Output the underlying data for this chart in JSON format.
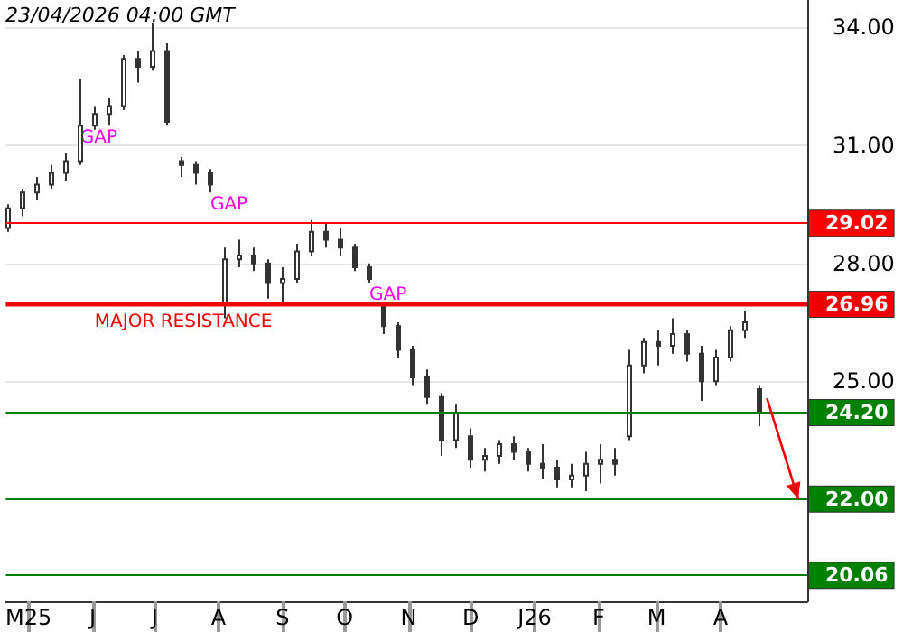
{
  "chart_data": {
    "type": "candlestick",
    "x": [
      "2025-04-21",
      "2025-04-28",
      "2025-05-05",
      "2025-05-12",
      "2025-05-19",
      "2025-05-26",
      "2025-06-02",
      "2025-06-09",
      "2025-06-16",
      "2025-06-23",
      "2025-06-30",
      "2025-07-07",
      "2025-07-14",
      "2025-07-21",
      "2025-07-28",
      "2025-08-04",
      "2025-08-11",
      "2025-08-18",
      "2025-08-25",
      "2025-09-01",
      "2025-09-08",
      "2025-09-15",
      "2025-09-22",
      "2025-09-29",
      "2025-10-06",
      "2025-10-13",
      "2025-10-20",
      "2025-10-27",
      "2025-11-03",
      "2025-11-10",
      "2025-11-17",
      "2025-11-24",
      "2025-12-01",
      "2025-12-08",
      "2025-12-15",
      "2025-12-22",
      "2025-12-29",
      "2026-01-05",
      "2026-01-12",
      "2026-01-19",
      "2026-01-26",
      "2026-02-02",
      "2026-02-09",
      "2026-02-16",
      "2026-02-23",
      "2026-03-02",
      "2026-03-09",
      "2026-03-16",
      "2026-03-23",
      "2026-03-30",
      "2026-04-06",
      "2026-04-13",
      "2026-04-20"
    ],
    "ohlc": [
      [
        28.9,
        29.5,
        28.8,
        29.4
      ],
      [
        29.4,
        29.9,
        29.2,
        29.8
      ],
      [
        29.8,
        30.2,
        29.6,
        30.0
      ],
      [
        30.0,
        30.5,
        29.9,
        30.3
      ],
      [
        30.3,
        30.8,
        30.1,
        30.6
      ],
      [
        30.6,
        32.7,
        30.5,
        31.5
      ],
      [
        31.5,
        32.0,
        31.4,
        31.8
      ],
      [
        31.8,
        32.2,
        31.5,
        32.0
      ],
      [
        32.0,
        33.3,
        31.9,
        33.2
      ],
      [
        33.2,
        33.4,
        32.6,
        33.0
      ],
      [
        33.0,
        34.1,
        32.9,
        33.4
      ],
      [
        33.4,
        33.6,
        31.5,
        31.6
      ],
      [
        30.6,
        30.7,
        30.2,
        30.5
      ],
      [
        30.5,
        30.6,
        30.0,
        30.3
      ],
      [
        30.3,
        30.4,
        29.8,
        30.0
      ],
      [
        27.0,
        28.4,
        26.6,
        28.1
      ],
      [
        28.1,
        28.6,
        27.9,
        28.2
      ],
      [
        28.2,
        28.4,
        27.8,
        28.0
      ],
      [
        28.0,
        28.1,
        27.1,
        27.5
      ],
      [
        27.5,
        27.9,
        27.0,
        27.6
      ],
      [
        27.6,
        28.5,
        27.5,
        28.3
      ],
      [
        28.3,
        29.1,
        28.2,
        28.8
      ],
      [
        28.8,
        29.0,
        28.4,
        28.6
      ],
      [
        28.6,
        28.9,
        28.2,
        28.4
      ],
      [
        28.4,
        28.5,
        27.8,
        27.9
      ],
      [
        27.9,
        28.0,
        27.5,
        27.6
      ],
      [
        26.9,
        26.9,
        26.2,
        26.4
      ],
      [
        26.4,
        26.5,
        25.6,
        25.8
      ],
      [
        25.8,
        25.9,
        24.9,
        25.1
      ],
      [
        25.1,
        25.3,
        24.4,
        24.6
      ],
      [
        24.6,
        24.7,
        23.1,
        23.5
      ],
      [
        23.5,
        24.4,
        23.3,
        24.2
      ],
      [
        23.6,
        23.8,
        22.8,
        23.0
      ],
      [
        23.0,
        23.3,
        22.7,
        23.1
      ],
      [
        23.1,
        23.5,
        22.9,
        23.4
      ],
      [
        23.4,
        23.6,
        23.0,
        23.2
      ],
      [
        23.2,
        23.3,
        22.7,
        22.9
      ],
      [
        22.9,
        23.4,
        22.5,
        22.8
      ],
      [
        22.8,
        23.0,
        22.3,
        22.5
      ],
      [
        22.5,
        22.9,
        22.3,
        22.6
      ],
      [
        22.6,
        23.2,
        22.2,
        22.9
      ],
      [
        22.9,
        23.4,
        22.4,
        23.0
      ],
      [
        23.0,
        23.3,
        22.6,
        22.9
      ],
      [
        23.6,
        25.8,
        23.5,
        25.4
      ],
      [
        25.4,
        26.1,
        25.2,
        26.0
      ],
      [
        26.0,
        26.3,
        25.4,
        25.9
      ],
      [
        25.9,
        26.6,
        25.7,
        26.2
      ],
      [
        26.2,
        26.3,
        25.5,
        25.7
      ],
      [
        25.7,
        25.9,
        24.5,
        25.0
      ],
      [
        25.0,
        25.8,
        24.9,
        25.6
      ],
      [
        25.6,
        26.4,
        25.5,
        26.3
      ],
      [
        26.3,
        26.8,
        26.1,
        26.5
      ],
      [
        24.8,
        24.9,
        23.85,
        24.2
      ]
    ],
    "color": "#333333",
    "xlim": [
      "2025-04-20",
      "2026-05-13"
    ],
    "xticks": [
      {
        "value": "2025-05-01",
        "label": "M25"
      },
      {
        "value": "2025-06-01",
        "label": "J"
      },
      {
        "value": "2025-07-01",
        "label": "J"
      },
      {
        "value": "2025-08-01",
        "label": "A"
      },
      {
        "value": "2025-09-01",
        "label": "S"
      },
      {
        "value": "2025-10-01",
        "label": "O"
      },
      {
        "value": "2025-11-01",
        "label": "N"
      },
      {
        "value": "2025-12-01",
        "label": "D"
      },
      {
        "value": "2026-01-01",
        "label": "J26"
      },
      {
        "value": "2026-02-01",
        "label": "F"
      },
      {
        "value": "2026-03-01",
        "label": "M"
      },
      {
        "value": "2026-04-01",
        "label": "A"
      }
    ],
    "ylim": [
      19.4,
      34.7
    ],
    "yticks": [
      {
        "value": 25,
        "label": "25.00"
      },
      {
        "value": 28,
        "label": "28.00"
      },
      {
        "value": 31,
        "label": "31.00"
      },
      {
        "value": 34,
        "label": "34.00"
      }
    ],
    "grid": "y",
    "ref_lines": [
      {
        "axis": "y",
        "value": 29.02,
        "label": "29.02",
        "color": "#ff0000"
      },
      {
        "axis": "y",
        "value": 26.96,
        "label": "26.96",
        "color": "#ee0000"
      },
      {
        "axis": "y",
        "value": 24.2,
        "label": "24.20",
        "color": "#008000"
      },
      {
        "axis": "y",
        "value": 22.0,
        "label": "22.00",
        "color": "#008000"
      },
      {
        "axis": "y",
        "value": 20.06,
        "label": "20.06",
        "color": "#008000"
      }
    ],
    "annotations": [
      "23/04/2026 04:00 GMT",
      {
        "text": "GAP",
        "x": "2025-05-26",
        "y": 31.5
      },
      {
        "text": "GAP",
        "x": "2025-07-28",
        "y": 29.8
      },
      {
        "text": "GAP",
        "x": "2025-10-13",
        "y": 27.5
      },
      {
        "text": "MAJOR RESISTANCE",
        "x": "2025-06-02",
        "y": 26.96
      }
    ]
  }
}
